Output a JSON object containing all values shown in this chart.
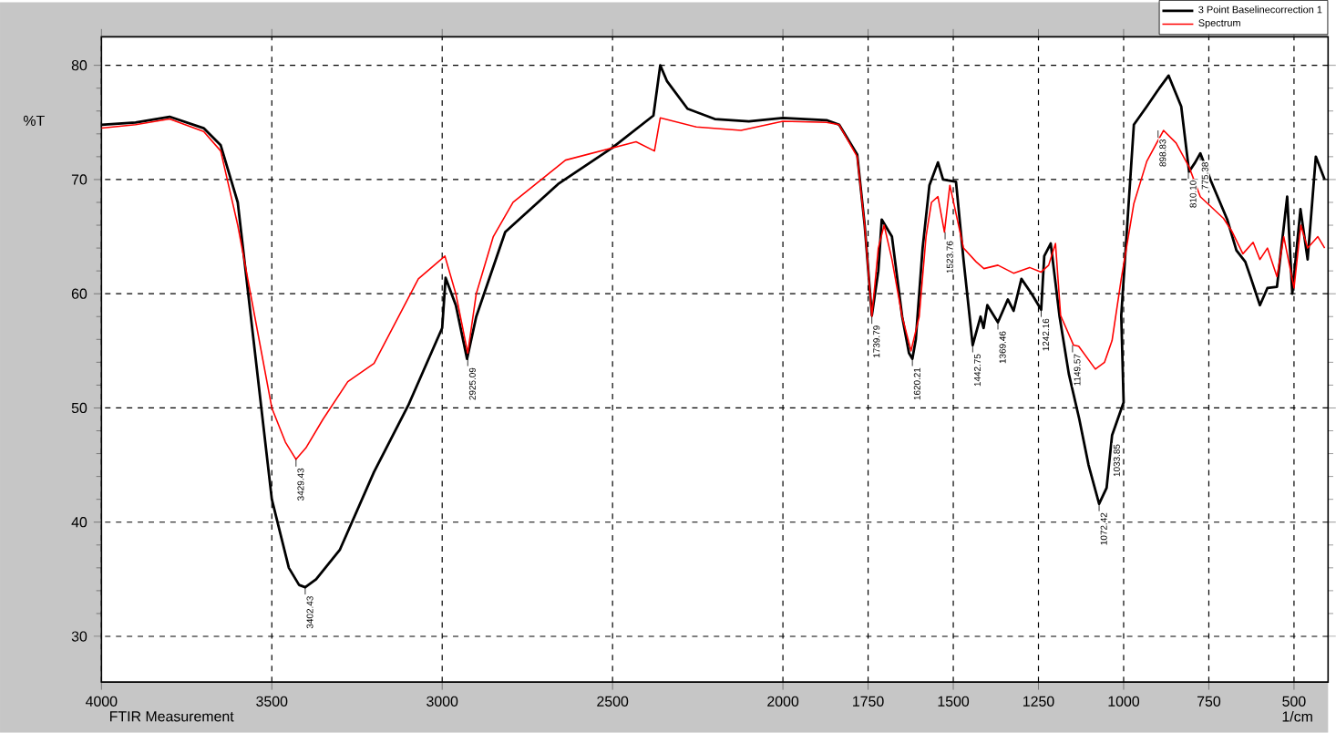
{
  "chart_data": {
    "type": "line",
    "xlabel": "1/cm",
    "ylabel": "%T",
    "xlim": [
      4000,
      400
    ],
    "ylim": [
      26,
      82.5
    ],
    "xticks": [
      4000,
      3500,
      3000,
      2500,
      2000,
      1750,
      1500,
      1250,
      1000,
      750,
      500
    ],
    "yticks": [
      30,
      40,
      50,
      60,
      70,
      80
    ],
    "grid": true,
    "legend": "top right",
    "line_style": "solid",
    "marker": "none",
    "series": [
      {
        "name": "3 Point Baselinecorrection 1",
        "color": "#000000",
        "x": [
          4000,
          3900,
          3800,
          3700,
          3650,
          3600,
          3550,
          3500,
          3450,
          3420,
          3402,
          3370,
          3300,
          3200,
          3100,
          3000,
          2990,
          2960,
          2927,
          2900,
          2815,
          2660,
          2500,
          2380,
          2360,
          2340,
          2280,
          2200,
          2100,
          2000,
          1872,
          1835,
          1782,
          1760,
          1739,
          1720,
          1710,
          1680,
          1650,
          1630,
          1620,
          1610,
          1590,
          1570,
          1545,
          1530,
          1492,
          1470,
          1443,
          1420,
          1411,
          1400,
          1369,
          1340,
          1323,
          1300,
          1270,
          1242,
          1233,
          1214,
          1188,
          1161,
          1130,
          1103,
          1072,
          1050,
          1034,
          1000,
          1007,
          970,
          932,
          900,
          868,
          831,
          808,
          790,
          775,
          744,
          696,
          669,
          643,
          628,
          600,
          578,
          550,
          520,
          505,
          481,
          460,
          436,
          410
        ],
        "values": [
          74.8,
          75.0,
          75.5,
          74.5,
          73,
          68,
          55,
          42,
          36,
          34.5,
          34.3,
          35.0,
          37.6,
          44.4,
          50.2,
          57,
          61.4,
          59,
          54.3,
          58,
          65.4,
          69.6,
          72.8,
          75.6,
          80,
          78.6,
          76.2,
          75.3,
          75.1,
          75.4,
          75.2,
          74.8,
          72.2,
          66,
          58.1,
          62,
          66.5,
          65,
          58,
          54.8,
          54.3,
          56,
          64,
          69.5,
          71.5,
          70,
          69.8,
          63,
          55.5,
          58,
          57,
          59,
          57.5,
          59.5,
          58.5,
          61.3,
          60,
          58.6,
          63.3,
          64.4,
          58,
          53,
          49,
          45,
          41.6,
          43,
          47.6,
          50.5,
          58.1,
          74.8,
          76.4,
          77.8,
          79.1,
          76.4,
          70.7,
          71.5,
          72.3,
          69.9,
          66.5,
          63.8,
          62.8,
          61.5,
          59,
          60.5,
          60.6,
          68.5,
          60,
          67.4,
          63,
          72,
          70
        ]
      },
      {
        "name": "Spectrum",
        "color": "#ff0000",
        "x": [
          4000,
          3900,
          3800,
          3700,
          3650,
          3600,
          3550,
          3500,
          3460,
          3429,
          3400,
          3350,
          3277,
          3200,
          3070,
          2992,
          2960,
          2925,
          2900,
          2850,
          2792,
          2638,
          2431,
          2377,
          2360,
          2254,
          2123,
          2000,
          1872,
          1835,
          1782,
          1760,
          1739,
          1720,
          1703,
          1680,
          1650,
          1624,
          1600,
          1580,
          1564,
          1545,
          1526,
          1510,
          1470,
          1433,
          1410,
          1369,
          1323,
          1276,
          1242,
          1220,
          1200,
          1185,
          1147,
          1132,
          1083,
          1056,
          1034,
          1007,
          970,
          932,
          883,
          846,
          808,
          775,
          707,
          681,
          650,
          620,
          600,
          578,
          550,
          530,
          500,
          480,
          460,
          430,
          410
        ],
        "values": [
          74.5,
          74.8,
          75.3,
          74.2,
          72.5,
          66,
          58,
          50,
          47,
          45.5,
          46.5,
          49,
          52.3,
          53.9,
          61.3,
          63.3,
          60,
          54.8,
          60,
          65,
          68,
          71.7,
          73.3,
          72.5,
          75.4,
          74.6,
          74.3,
          75.1,
          75,
          74.8,
          72,
          66,
          58,
          64,
          66,
          63,
          58,
          55,
          58,
          65,
          68,
          68.5,
          65.4,
          69.5,
          64,
          62.8,
          62.2,
          62.5,
          61.8,
          62.3,
          61.9,
          62.5,
          64.4,
          58.1,
          55.5,
          55.4,
          53.4,
          54,
          55.9,
          61.3,
          67.9,
          71.6,
          74.3,
          73.2,
          71.1,
          68.5,
          66.6,
          65.4,
          63.5,
          64.5,
          63,
          64,
          61.5,
          65,
          60.5,
          66,
          64,
          65,
          64
        ]
      }
    ],
    "annotations": [
      {
        "text": "3402.43",
        "x": 3402,
        "y": 34.3
      },
      {
        "text": "3429.43",
        "x": 3429,
        "y": 45.5
      },
      {
        "text": "2925.09",
        "x": 2925,
        "y": 54.3
      },
      {
        "text": "1739.79",
        "x": 1739,
        "y": 58
      },
      {
        "text": "1620.21",
        "x": 1620,
        "y": 54.3
      },
      {
        "text": "1523.76",
        "x": 1524,
        "y": 65.4
      },
      {
        "text": "1442.75",
        "x": 1443,
        "y": 55.5
      },
      {
        "text": "1369.46",
        "x": 1369,
        "y": 57.5
      },
      {
        "text": "1242.16",
        "x": 1242,
        "y": 58.6
      },
      {
        "text": "1149.57",
        "x": 1150,
        "y": 55.5
      },
      {
        "text": "1072.42",
        "x": 1072,
        "y": 41.6
      },
      {
        "text": "1033.85",
        "x": 1034,
        "y": 47.6
      },
      {
        "text": "898.83",
        "x": 899,
        "y": 74.3
      },
      {
        "text": "810.10",
        "x": 810,
        "y": 70.7
      },
      {
        "text": "775.38",
        "x": 775,
        "y": 72.3
      },
      "FTIR Measurement"
    ]
  }
}
